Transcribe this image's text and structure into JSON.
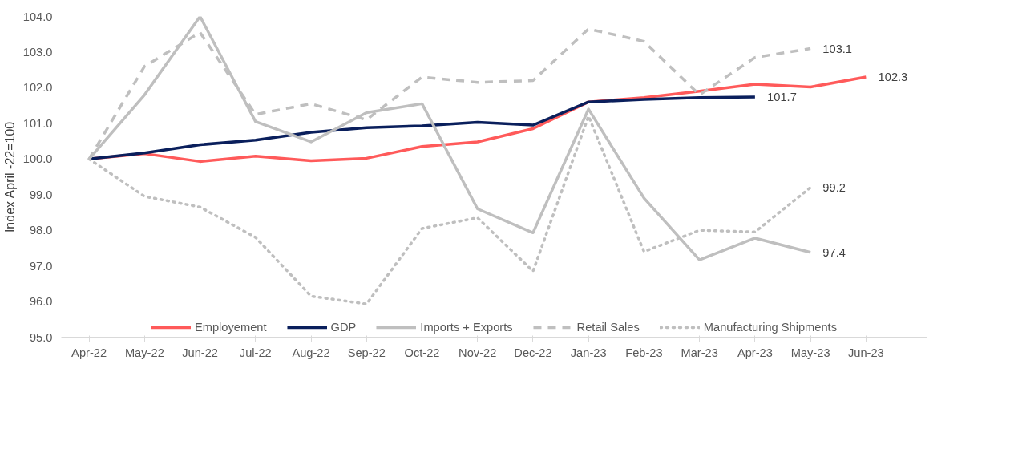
{
  "chart_data": {
    "type": "line",
    "ylabel": "Index April -22=100",
    "categories": [
      "Apr-22",
      "May-22",
      "Jun-22",
      "Jul-22",
      "Aug-22",
      "Sep-22",
      "Oct-22",
      "Nov-22",
      "Dec-22",
      "Jan-23",
      "Feb-23",
      "Mar-23",
      "Apr-23",
      "May-23",
      "Jun-23"
    ],
    "ylim": [
      95,
      104
    ],
    "yticks": [
      {
        "value": 95,
        "label": "95.0"
      },
      {
        "value": 96,
        "label": "96.0"
      },
      {
        "value": 97,
        "label": "97.0"
      },
      {
        "value": 98,
        "label": "98.0"
      },
      {
        "value": 99,
        "label": "99.0"
      },
      {
        "value": 100,
        "label": "100.0"
      },
      {
        "value": 101,
        "label": "101.0"
      },
      {
        "value": 102,
        "label": "102.0"
      },
      {
        "value": 103,
        "label": "103.0"
      },
      {
        "value": 104,
        "label": "104.0"
      }
    ],
    "grid": false,
    "legend": "bottom",
    "series": [
      {
        "name": "Employement",
        "color": "#ff5a5a",
        "line_style": "solid",
        "values": [
          100,
          100.15,
          99.93,
          100.08,
          99.95,
          100.02,
          100.35,
          100.48,
          100.85,
          101.6,
          101.72,
          101.9,
          102.1,
          102.02,
          102.3
        ],
        "value_labels": [
          null,
          null,
          null,
          null,
          null,
          null,
          null,
          null,
          null,
          null,
          null,
          null,
          null,
          null,
          "102.3"
        ]
      },
      {
        "name": "GDP",
        "color": "#0a1f5c",
        "line_style": "solid",
        "values": [
          100,
          100.17,
          100.4,
          100.53,
          100.75,
          100.88,
          100.93,
          101.03,
          100.95,
          101.6,
          101.67,
          101.72,
          101.74,
          null,
          null
        ],
        "value_labels": [
          null,
          null,
          null,
          null,
          null,
          null,
          null,
          null,
          null,
          null,
          null,
          null,
          "101.7",
          null,
          null
        ]
      },
      {
        "name": "Imports + Exports",
        "color": "#bfbfbf",
        "line_style": "solid",
        "values": [
          100,
          101.8,
          104.0,
          101.05,
          100.48,
          101.3,
          101.55,
          98.6,
          97.93,
          101.4,
          98.9,
          97.17,
          97.78,
          97.38,
          null
        ],
        "value_labels": [
          null,
          null,
          null,
          null,
          null,
          null,
          null,
          null,
          null,
          null,
          null,
          null,
          null,
          "97.4",
          null
        ]
      },
      {
        "name": "Retail Sales",
        "color": "#bfbfbf",
        "line_style": "dashed",
        "values": [
          100,
          102.6,
          103.55,
          101.25,
          101.55,
          101.1,
          102.3,
          102.15,
          102.2,
          103.65,
          103.3,
          101.8,
          102.85,
          103.1,
          null
        ],
        "value_labels": [
          null,
          null,
          null,
          null,
          null,
          null,
          null,
          null,
          null,
          null,
          null,
          null,
          null,
          "103.1",
          null
        ]
      },
      {
        "name": "Manufacturing Shipments",
        "color": "#bfbfbf",
        "line_style": "dotted",
        "values": [
          100,
          98.95,
          98.65,
          97.8,
          96.15,
          95.93,
          98.05,
          98.35,
          96.85,
          101.2,
          97.4,
          98.0,
          97.95,
          99.2,
          null
        ],
        "value_labels": [
          null,
          null,
          null,
          null,
          null,
          null,
          null,
          null,
          null,
          null,
          null,
          null,
          null,
          "99.2",
          null
        ]
      }
    ]
  }
}
